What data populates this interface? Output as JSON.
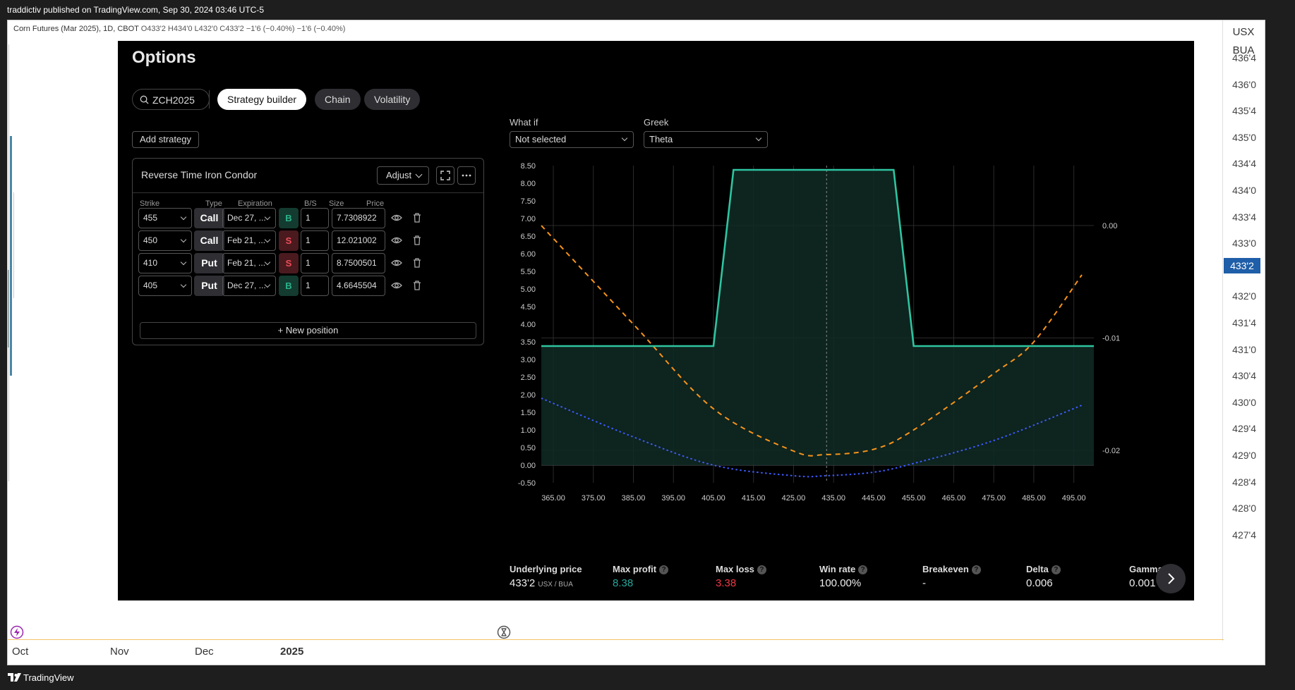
{
  "publish_bar": {
    "text": "traddictiv published on TradingView.com, Sep 30, 2024 03:46 UTC-5"
  },
  "legend": {
    "symbol": "Corn Futures (Mar 2025), 1D, CBOT",
    "ohlc": "O433'2  H434'0  L432'0  C433'2  −1'6 (−0.40%)  −1'6 (−0.40%)"
  },
  "price_axis": {
    "unit_top": "USX",
    "unit_bottom": "BUA",
    "ticks": [
      "436'4",
      "436'0",
      "435'4",
      "435'0",
      "434'4",
      "434'0",
      "433'4",
      "433'0",
      "432'4",
      "432'0",
      "431'4",
      "431'0",
      "430'4",
      "430'0",
      "429'4",
      "429'0",
      "428'4",
      "428'0",
      "427'4"
    ],
    "current": "433'2"
  },
  "time_axis": {
    "labels": [
      "Oct",
      "Nov",
      "Dec",
      "2025"
    ]
  },
  "options": {
    "title": "Options",
    "search_value": "ZCH2025",
    "tabs": [
      "Strategy builder",
      "Chain",
      "Volatility"
    ],
    "active_tab": "Strategy builder",
    "add_strategy_label": "Add strategy",
    "strategy": {
      "name": "Reverse Time Iron Condor",
      "adjust_label": "Adjust",
      "columns": [
        "Strike",
        "Type",
        "Expiration",
        "B/S",
        "Size",
        "Price"
      ],
      "legs": [
        {
          "strike": "455",
          "type": "Call",
          "expiration": "Dec 27, ...",
          "bs": "B",
          "size": "1",
          "price": "7.7308922"
        },
        {
          "strike": "450",
          "type": "Call",
          "expiration": "Feb 21, ...",
          "bs": "S",
          "size": "1",
          "price": "12.021002"
        },
        {
          "strike": "410",
          "type": "Put",
          "expiration": "Feb 21, ...",
          "bs": "S",
          "size": "1",
          "price": "8.7500501"
        },
        {
          "strike": "405",
          "type": "Put",
          "expiration": "Dec 27, ...",
          "bs": "B",
          "size": "1",
          "price": "4.6645504"
        }
      ],
      "new_position_label": "+  New position"
    },
    "what_if": {
      "label": "What if",
      "value": "Not selected"
    },
    "greek": {
      "label": "Greek",
      "value": "Theta"
    },
    "stats": {
      "underlying_label": "Underlying price",
      "underlying_value": "433'2",
      "underlying_unit": "USX / BUA",
      "max_profit_label": "Max profit",
      "max_profit_value": "8.38",
      "max_loss_label": "Max loss",
      "max_loss_value": "3.38",
      "win_rate_label": "Win rate",
      "win_rate_value": "100.00%",
      "breakeven_label": "Breakeven",
      "breakeven_value": "-",
      "delta_label": "Delta",
      "delta_value": "0.006",
      "gamma_label": "Gamma",
      "gamma_value": "0.001"
    },
    "colors": {
      "profit": "#26a69a",
      "loss": "#f23645",
      "payoff": "#2ec4a0",
      "theta": "#f7931a",
      "pnl_today": "#3d5afe"
    }
  },
  "chart_data": {
    "type": "line",
    "x_ticks": [
      "365.00",
      "375.00",
      "385.00",
      "395.00",
      "405.00",
      "415.00",
      "425.00",
      "435.00",
      "445.00",
      "455.00",
      "465.00",
      "475.00",
      "485.00",
      "495.00"
    ],
    "y_ticks": [
      "8.50",
      "8.00",
      "7.50",
      "7.00",
      "6.50",
      "6.00",
      "5.50",
      "5.00",
      "4.50",
      "4.00",
      "3.50",
      "3.00",
      "2.50",
      "2.00",
      "1.50",
      "1.00",
      "0.50",
      "0.00",
      "-0.50"
    ],
    "y2_ticks": [
      "0.00",
      "-0.01",
      "-0.02"
    ],
    "xlim": [
      362,
      500
    ],
    "ylim": [
      -0.5,
      8.5
    ],
    "underlying_marker": 433.25,
    "series": [
      {
        "kind": "payoff",
        "x": [
          362,
          405,
          410,
          450,
          455,
          500
        ],
        "y": [
          3.38,
          3.38,
          8.38,
          8.38,
          3.38,
          3.38
        ]
      },
      {
        "kind": "theta",
        "x": [
          362,
          385,
          405,
          425,
          433,
          445,
          455,
          475,
          485,
          497
        ],
        "y": [
          6.8,
          4.0,
          1.6,
          0.4,
          0.3,
          0.45,
          1.0,
          2.6,
          3.5,
          5.4
        ]
      },
      {
        "kind": "pnl",
        "x": [
          362,
          385,
          405,
          425,
          433,
          445,
          455,
          475,
          497
        ],
        "y": [
          1.9,
          0.8,
          0.0,
          -0.3,
          -0.3,
          -0.2,
          0.05,
          0.7,
          1.7
        ]
      }
    ]
  }
}
